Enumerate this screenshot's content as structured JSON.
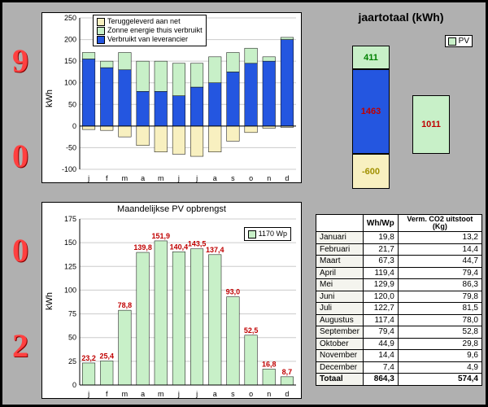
{
  "year": "2009",
  "colors": {
    "blue": "#2456e0",
    "green": "#c8f0c8",
    "cream": "#f8f0c0",
    "red_text": "#c00000",
    "grid": "#c0c0c0",
    "bg": "#b0b0b0"
  },
  "chart1": {
    "title": "",
    "ylabel": "kWh",
    "ylim_min": -100,
    "ylim_max": 250,
    "ytick_step": 50,
    "months": [
      "j",
      "f",
      "m",
      "a",
      "m",
      "j",
      "j",
      "a",
      "s",
      "o",
      "n",
      "d"
    ],
    "series": {
      "terug": [
        -8,
        -10,
        -25,
        -45,
        -60,
        -65,
        -70,
        -60,
        -35,
        -15,
        -5,
        -3
      ],
      "zonne": [
        15,
        15,
        40,
        70,
        70,
        75,
        55,
        60,
        45,
        35,
        10,
        5
      ],
      "leverancier": [
        155,
        135,
        130,
        80,
        80,
        70,
        90,
        100,
        125,
        145,
        150,
        200
      ]
    },
    "legend": [
      {
        "label": "Teruggeleverd aan net",
        "color": "#f8f0c0",
        "key": "terug"
      },
      {
        "label": "Zonne energie thuis verbruikt",
        "color": "#c8f0c8",
        "key": "zonne"
      },
      {
        "label": "Verbruikt van leverancier",
        "color": "#2456e0",
        "key": "leverancier"
      }
    ]
  },
  "chart2": {
    "title": "Maandelijkse PV opbrengst",
    "ylabel": "kWh",
    "ylim_min": 0,
    "ylim_max": 175,
    "ytick_step": 25,
    "months": [
      "j",
      "f",
      "m",
      "a",
      "m",
      "j",
      "j",
      "a",
      "s",
      "o",
      "n",
      "d"
    ],
    "values": [
      23.2,
      25.4,
      78.8,
      139.8,
      151.9,
      140.4,
      143.5,
      137.4,
      93.0,
      52.5,
      16.8,
      8.7
    ],
    "labels": [
      "23,2",
      "25,4",
      "78,8",
      "139,8",
      "151,9",
      "140,4",
      "143,5",
      "137,4",
      "93,0",
      "52,5",
      "16,8",
      "8,7"
    ],
    "bar_color": "#c8f0c8",
    "label_color": "#c00000",
    "legend_label": "1170 Wp"
  },
  "annual": {
    "title": "jaartotaal (kWh)",
    "legend": "PV",
    "left": [
      {
        "v": 411,
        "label": "411",
        "color": "#c8f0c8",
        "textcolor": "#008000"
      },
      {
        "v": 1463,
        "label": "1463",
        "color": "#2456e0",
        "textcolor": "#c00000"
      },
      {
        "v": -600,
        "label": "-600",
        "color": "#f8f0c0",
        "textcolor": "#a09000"
      }
    ],
    "right": {
      "v": 1011,
      "label": "1011",
      "color": "#c8f0c8",
      "textcolor": "#c00000"
    },
    "ylim_min": -700,
    "ylim_max": 2000
  },
  "table": {
    "headers": [
      "",
      "Wh/Wp",
      "Verm. CO2 uitstoot (Kg)"
    ],
    "rows": [
      [
        "Januari",
        "19,8",
        "13,2"
      ],
      [
        "Februari",
        "21,7",
        "14,4"
      ],
      [
        "Maart",
        "67,3",
        "44,7"
      ],
      [
        "April",
        "119,4",
        "79,4"
      ],
      [
        "Mei",
        "129,9",
        "86,3"
      ],
      [
        "Juni",
        "120,0",
        "79,8"
      ],
      [
        "Juli",
        "122,7",
        "81,5"
      ],
      [
        "Augustus",
        "117,4",
        "78,0"
      ],
      [
        "September",
        "79,4",
        "52,8"
      ],
      [
        "Oktober",
        "44,9",
        "29,8"
      ],
      [
        "November",
        "14,4",
        "9,6"
      ],
      [
        "December",
        "7,4",
        "4,9"
      ]
    ],
    "total": [
      "Totaal",
      "864,3",
      "574,4"
    ]
  }
}
